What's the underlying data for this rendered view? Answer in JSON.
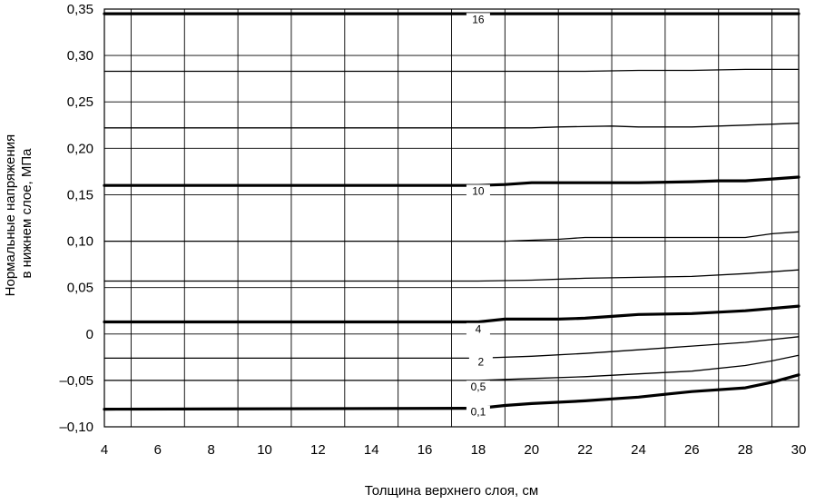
{
  "chart_data": {
    "type": "line",
    "title": "",
    "xlabel": "Толщина верхнего слоя, см",
    "ylabel_line1": "Нормальные напряжения",
    "ylabel_line2": "в нижнем слое, МПа",
    "xlim": [
      4,
      30
    ],
    "ylim": [
      -0.1,
      0.35
    ],
    "grid": true,
    "x_ticks": [
      4,
      6,
      8,
      10,
      12,
      14,
      16,
      18,
      20,
      22,
      24,
      26,
      28,
      30
    ],
    "x_tick_labels": [
      "4",
      "6",
      "8",
      "10",
      "12",
      "14",
      "16",
      "18",
      "20",
      "22",
      "24",
      "26",
      "28",
      "30"
    ],
    "y_ticks": [
      -0.1,
      -0.05,
      0,
      0.05,
      0.1,
      0.15,
      0.2,
      0.25,
      0.3,
      0.35
    ],
    "y_tick_labels": [
      "–0,10",
      "–0,05",
      "0",
      "0,05",
      "0,10",
      "0,15",
      "0,20",
      "0,25",
      "0,30",
      "0,35"
    ],
    "series": [
      {
        "name": "16",
        "thick": true,
        "x": [
          4,
          30
        ],
        "y": [
          0.345,
          0.345
        ]
      },
      {
        "name": "",
        "thick": false,
        "x": [
          4,
          20,
          22,
          24,
          26,
          28,
          30
        ],
        "y": [
          0.283,
          0.283,
          0.283,
          0.284,
          0.284,
          0.285,
          0.285
        ]
      },
      {
        "name": "",
        "thick": false,
        "x": [
          4,
          20,
          21,
          23,
          24,
          25,
          26,
          27,
          28,
          30
        ],
        "y": [
          0.222,
          0.222,
          0.223,
          0.224,
          0.223,
          0.223,
          0.223,
          0.224,
          0.225,
          0.227
        ]
      },
      {
        "name": "10",
        "thick": true,
        "x": [
          4,
          18,
          19,
          20,
          22,
          24,
          26,
          27,
          28,
          29,
          30
        ],
        "y": [
          0.16,
          0.16,
          0.161,
          0.163,
          0.163,
          0.163,
          0.164,
          0.165,
          0.165,
          0.167,
          0.169
        ]
      },
      {
        "name": "",
        "thick": false,
        "x": [
          4,
          19,
          20,
          21,
          22,
          24,
          26,
          27,
          28,
          29,
          30
        ],
        "y": [
          0.1,
          0.1,
          0.101,
          0.102,
          0.104,
          0.104,
          0.104,
          0.104,
          0.104,
          0.108,
          0.11
        ]
      },
      {
        "name": "",
        "thick": false,
        "x": [
          4,
          18,
          20,
          22,
          24,
          26,
          28,
          30
        ],
        "y": [
          0.057,
          0.057,
          0.058,
          0.06,
          0.061,
          0.062,
          0.065,
          0.069
        ]
      },
      {
        "name": "4",
        "thick": true,
        "x": [
          4,
          18,
          19,
          20,
          21,
          22,
          23,
          24,
          26,
          28,
          30
        ],
        "y": [
          0.013,
          0.013,
          0.016,
          0.016,
          0.016,
          0.017,
          0.019,
          0.021,
          0.022,
          0.025,
          0.03
        ]
      },
      {
        "name": "2",
        "thick": false,
        "x": [
          4,
          18,
          20,
          22,
          24,
          26,
          28,
          30
        ],
        "y": [
          -0.026,
          -0.026,
          -0.024,
          -0.021,
          -0.017,
          -0.013,
          -0.009,
          -0.003
        ]
      },
      {
        "name": "0,5",
        "thick": false,
        "x": [
          4,
          18,
          20,
          22,
          24,
          26,
          28,
          29,
          30
        ],
        "y": [
          -0.05,
          -0.05,
          -0.048,
          -0.046,
          -0.043,
          -0.04,
          -0.034,
          -0.029,
          -0.023
        ]
      },
      {
        "name": "0,1",
        "thick": true,
        "x": [
          4,
          18,
          19,
          20,
          22,
          23,
          24,
          25,
          26,
          28,
          29,
          30
        ],
        "y": [
          -0.081,
          -0.08,
          -0.077,
          -0.075,
          -0.072,
          -0.07,
          -0.068,
          -0.065,
          -0.062,
          -0.058,
          -0.052,
          -0.044
        ]
      }
    ],
    "curve_labels": [
      {
        "text": "16",
        "x": 18.0,
        "y": 0.336
      },
      {
        "text": "10",
        "x": 18.0,
        "y": 0.151
      },
      {
        "text": "4",
        "x": 18.0,
        "y": 0.002
      },
      {
        "text": "2",
        "x": 18.1,
        "y": -0.033
      },
      {
        "text": "0,5",
        "x": 18.0,
        "y": -0.06
      },
      {
        "text": "0,1",
        "x": 18.0,
        "y": -0.087
      }
    ]
  }
}
